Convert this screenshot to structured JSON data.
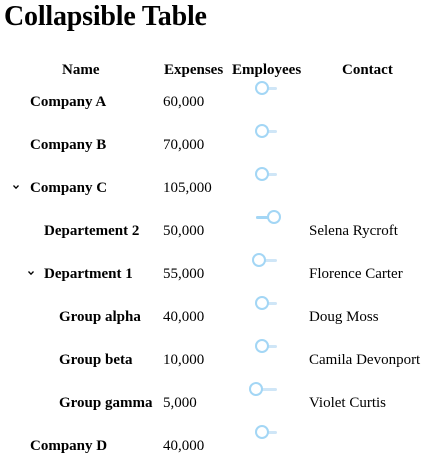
{
  "page": {
    "title": "Collapsible Table"
  },
  "columns": {
    "name": "Name",
    "expenses": "Expenses",
    "employees": "Employees",
    "contact": "Contact"
  },
  "colors": {
    "slider": "#a3d6f5",
    "slider_track": "#cfe6f7"
  },
  "rows": [
    {
      "name": "Company A",
      "expenses": "60,000",
      "employees_level": 0.3,
      "contact": "",
      "expanded": null
    },
    {
      "name": "Company B",
      "expenses": "70,000",
      "employees_level": 0.3,
      "contact": "",
      "expanded": null
    },
    {
      "name": "Company C",
      "expenses": "105,000",
      "employees_level": 0.3,
      "contact": "",
      "expanded": true,
      "toggle_icon": "chevron-down-icon"
    },
    {
      "name": "Departement 2",
      "expenses": "50,000",
      "employees_level": 0.85,
      "contact": "Selena Rycroft",
      "expanded": null
    },
    {
      "name": "Department 1",
      "expenses": "55,000",
      "employees_level": 0.15,
      "contact": "Florence Carter",
      "expanded": true,
      "toggle_icon": "chevron-down-icon"
    },
    {
      "name": "Group alpha",
      "expenses": "40,000",
      "employees_level": 0.3,
      "contact": "Doug Moss",
      "expanded": null
    },
    {
      "name": "Group beta",
      "expenses": "10,000",
      "employees_level": 0.3,
      "contact": "Camila Devonport",
      "expanded": null
    },
    {
      "name": "Group gamma",
      "expenses": "5,000",
      "employees_level": 0.0,
      "contact": "Violet Curtis",
      "expanded": null
    },
    {
      "name": "Company D",
      "expenses": "40,000",
      "employees_level": 0.3,
      "contact": "",
      "expanded": null
    }
  ]
}
